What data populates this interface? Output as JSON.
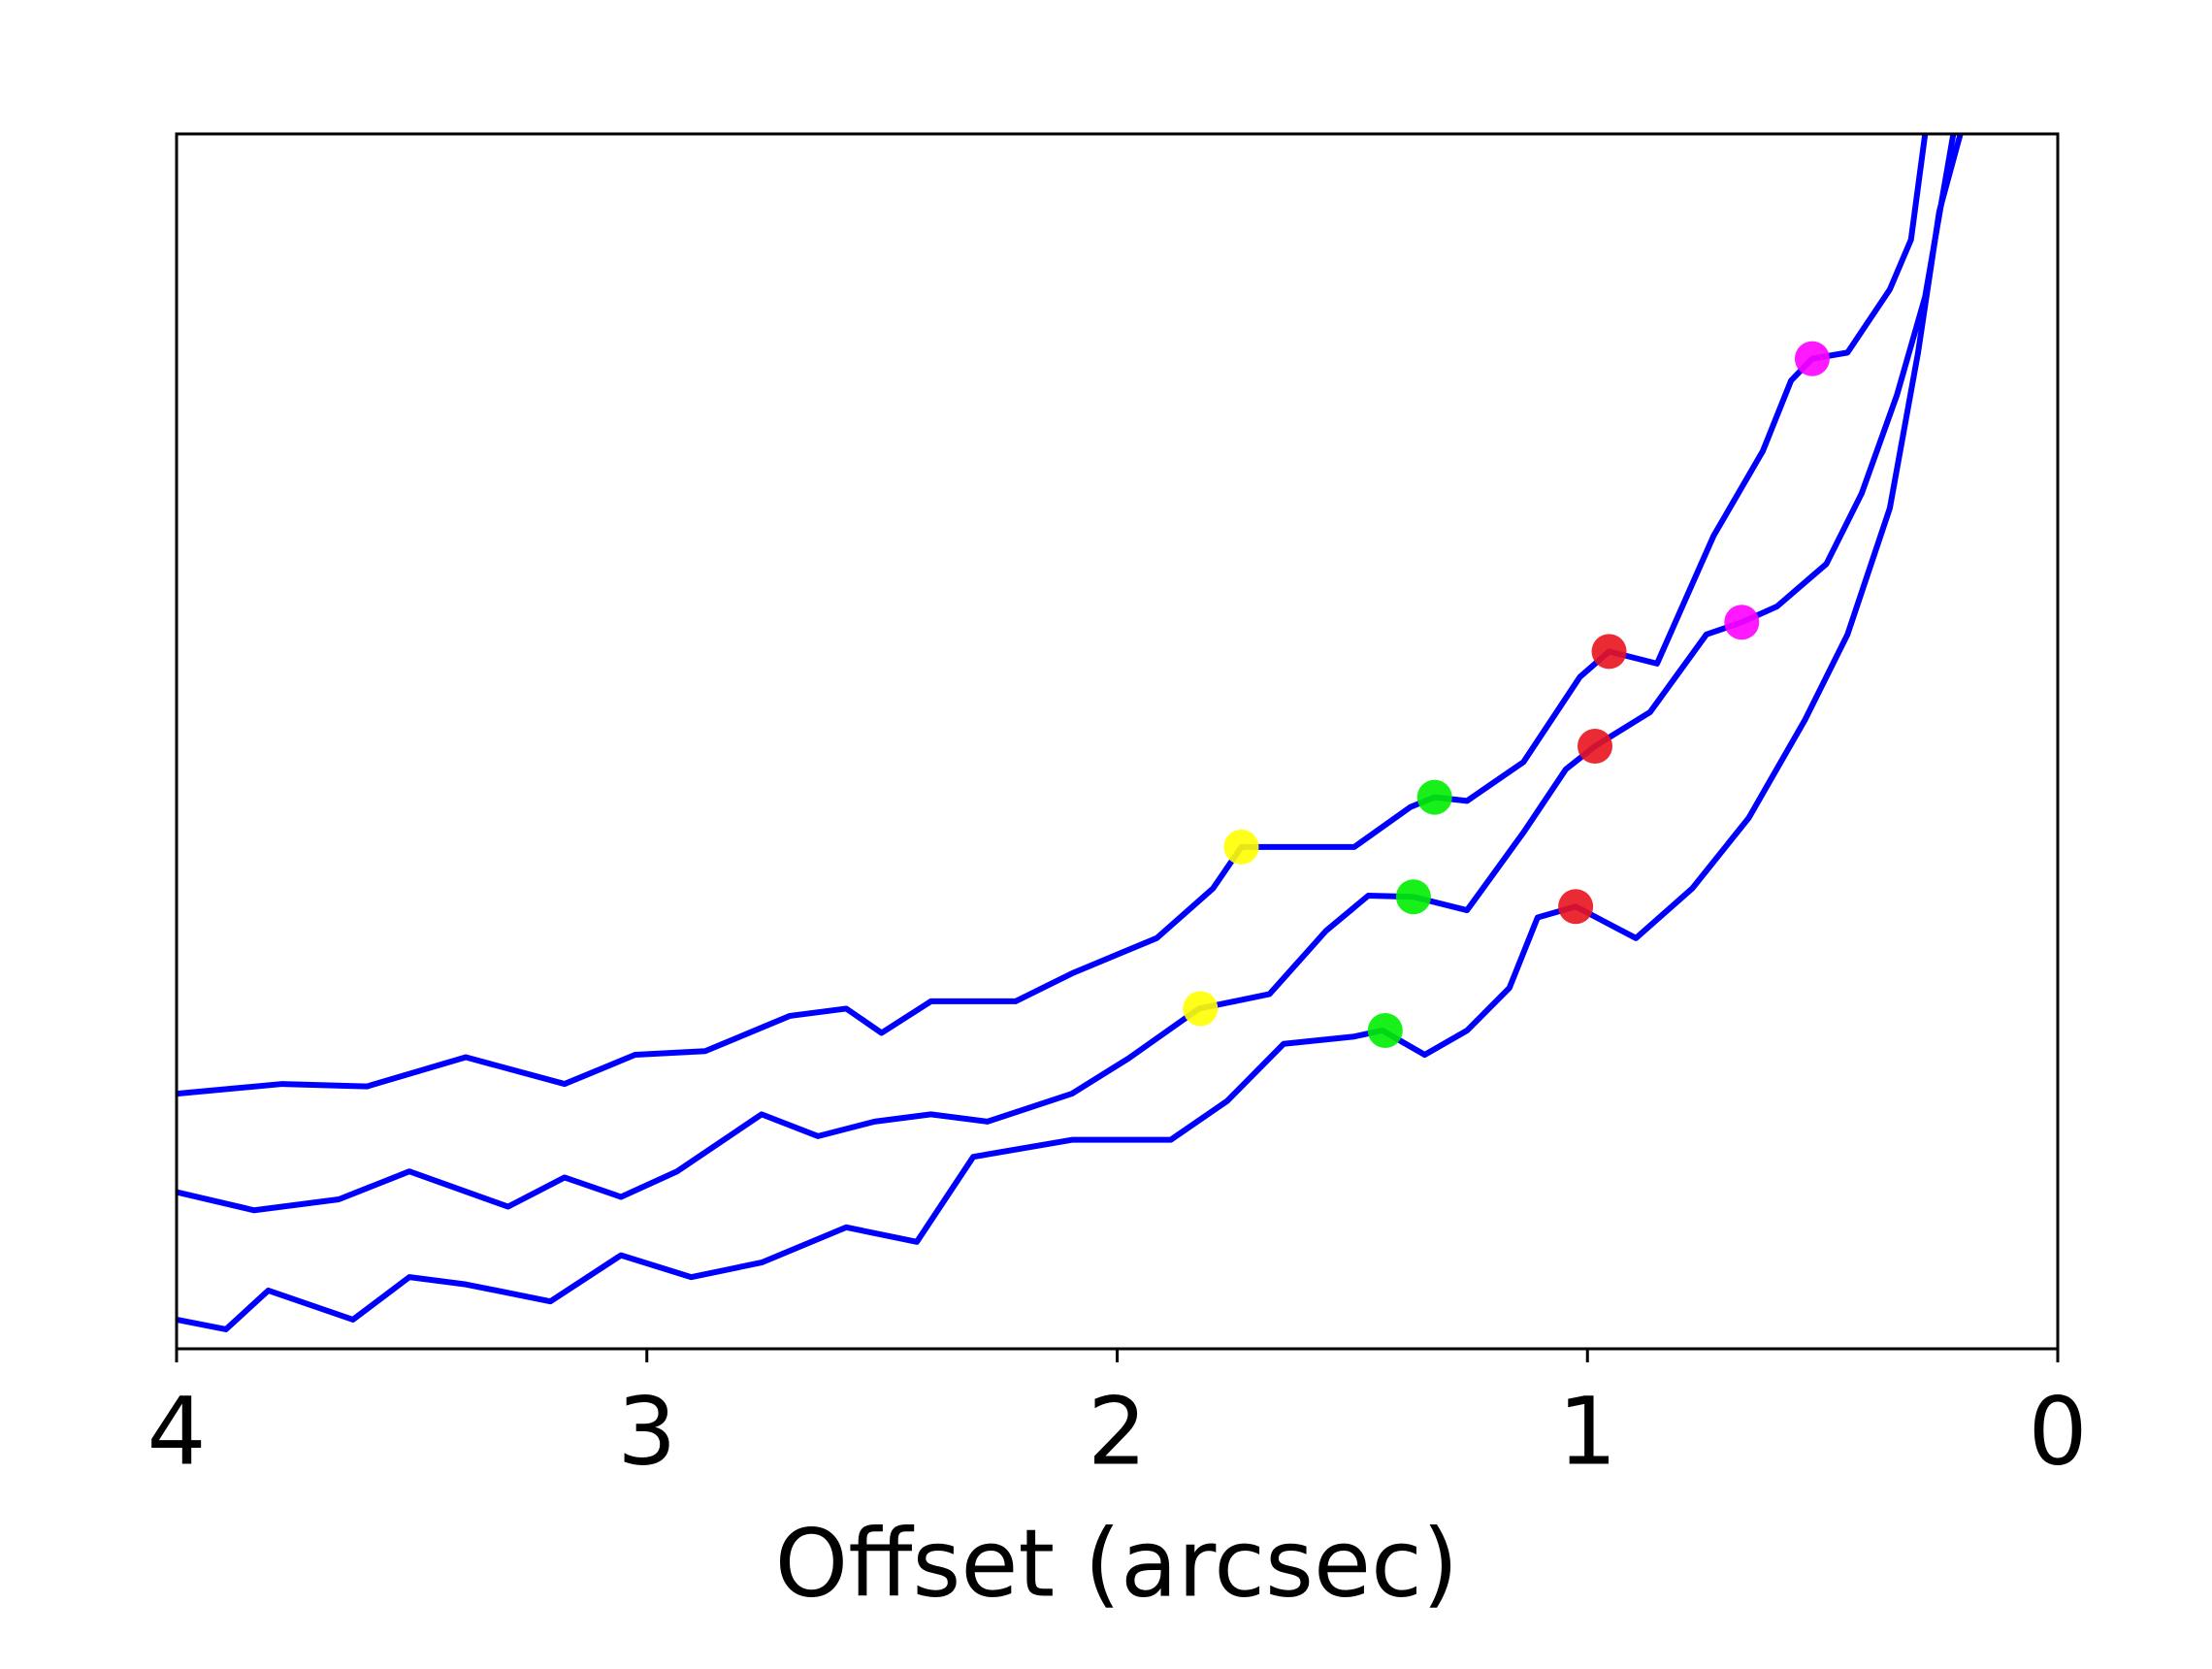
{
  "chart_data": {
    "type": "line",
    "xlabel": "Offset (arcsec)",
    "xlim": [
      4,
      0
    ],
    "xticks": [
      4,
      3,
      2,
      1,
      0
    ],
    "ylim": [
      0,
      100
    ],
    "series": [
      {
        "color": "#0000ff",
        "x": [
          4.0,
          3.775,
          3.595,
          3.385,
          3.175,
          3.025,
          2.876,
          2.696,
          2.576,
          2.501,
          2.396,
          2.216,
          2.096,
          1.916,
          1.796,
          1.736,
          1.676,
          1.496,
          1.376,
          1.325,
          1.256,
          1.136,
          1.016,
          0.954,
          0.852,
          0.732,
          0.627,
          0.567,
          0.522,
          0.447,
          0.357,
          0.312,
          0.282
        ],
        "values": [
          21.0,
          21.8,
          21.6,
          24.0,
          21.8,
          24.2,
          24.5,
          27.4,
          28.0,
          26.0,
          28.6,
          28.6,
          30.9,
          33.8,
          37.9,
          41.3,
          41.3,
          41.3,
          44.6,
          45.4,
          45.1,
          48.3,
          55.3,
          57.4,
          56.4,
          66.9,
          73.9,
          79.7,
          81.5,
          82.0,
          87.2,
          91.3,
          100
        ]
      },
      {
        "color": "#0000ff",
        "x": [
          4.0,
          3.835,
          3.655,
          3.505,
          3.295,
          3.175,
          3.055,
          2.936,
          2.756,
          2.636,
          2.516,
          2.396,
          2.276,
          2.096,
          1.976,
          1.826,
          1.676,
          1.556,
          1.466,
          1.37,
          1.256,
          1.136,
          1.046,
          0.984,
          0.867,
          0.747,
          0.672,
          0.597,
          0.492,
          0.417,
          0.342,
          0.282,
          0.222
        ],
        "values": [
          12.9,
          11.4,
          12.3,
          14.6,
          11.7,
          14.1,
          12.5,
          14.6,
          19.3,
          17.5,
          18.7,
          19.3,
          18.7,
          21.0,
          23.9,
          28.0,
          29.2,
          34.4,
          37.3,
          37.2,
          36.1,
          42.5,
          47.7,
          49.6,
          52.4,
          58.8,
          59.8,
          61.1,
          64.6,
          70.4,
          78.5,
          86.6,
          100
        ]
      },
      {
        "color": "#0000ff",
        "x": [
          4.0,
          3.895,
          3.805,
          3.625,
          3.505,
          3.385,
          3.205,
          3.055,
          2.906,
          2.756,
          2.576,
          2.426,
          2.306,
          2.096,
          1.886,
          1.766,
          1.646,
          1.496,
          1.436,
          1.346,
          1.256,
          1.166,
          1.106,
          1.025,
          0.897,
          0.777,
          0.657,
          0.537,
          0.447,
          0.357,
          0.297,
          0.252,
          0.207
        ],
        "values": [
          2.4,
          1.6,
          4.8,
          2.4,
          5.9,
          5.3,
          3.9,
          7.7,
          5.9,
          7.1,
          10.0,
          8.8,
          15.8,
          17.2,
          17.2,
          20.4,
          25.1,
          25.7,
          26.2,
          24.2,
          26.2,
          29.7,
          35.5,
          36.4,
          33.8,
          37.9,
          43.7,
          51.8,
          58.8,
          69.2,
          82.0,
          93.6,
          100
        ]
      }
    ],
    "markers": [
      {
        "color": "#ffff00",
        "x": [
          1.736,
          1.823
        ],
        "values": [
          41.3,
          28.0
        ]
      },
      {
        "color": "#00ee00",
        "x": [
          1.325,
          1.37,
          1.43
        ],
        "values": [
          45.4,
          37.2,
          26.2
        ]
      },
      {
        "color": "#e8141e",
        "x": [
          0.954,
          0.984,
          1.025
        ],
        "values": [
          57.4,
          49.6,
          36.4
        ]
      },
      {
        "color": "#ff00ff",
        "x": [
          0.522,
          0.672
        ],
        "values": [
          81.5,
          59.8
        ]
      }
    ]
  }
}
